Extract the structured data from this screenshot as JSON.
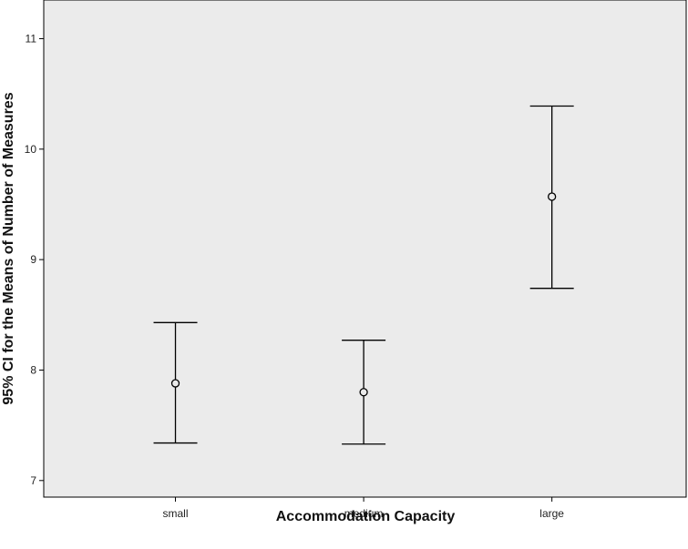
{
  "chart_data": {
    "type": "errorbar",
    "title": "",
    "xlabel": "Accommodation Capacity",
    "ylabel": "95% CI for the Means of Number of Measures",
    "categories": [
      "small",
      "medium",
      "large"
    ],
    "mean": [
      7.88,
      7.8,
      9.57
    ],
    "ci_lower": [
      7.34,
      7.33,
      8.74
    ],
    "ci_upper": [
      8.43,
      8.27,
      10.39
    ],
    "ylim": [
      6.85,
      11.35
    ],
    "yticks": [
      7,
      8,
      9,
      10,
      11
    ],
    "ytick_labels": [
      "7",
      "8",
      "9",
      "10",
      "11"
    ],
    "grid": false,
    "legend": "none",
    "colors": {
      "plot_background": "#ebebeb",
      "axis": "#000000",
      "marker": "#000000"
    }
  }
}
